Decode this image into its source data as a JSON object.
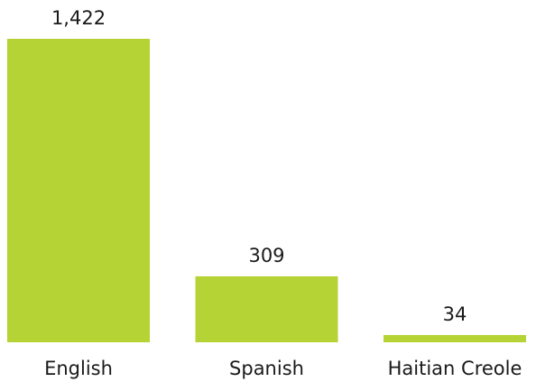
{
  "chart_data": {
    "type": "bar",
    "categories": [
      "English",
      "Spanish",
      "Haitian Creole"
    ],
    "values": [
      1422,
      309,
      34
    ],
    "value_labels": [
      "1,422",
      "309",
      "34"
    ],
    "color": "#b5d334"
  }
}
